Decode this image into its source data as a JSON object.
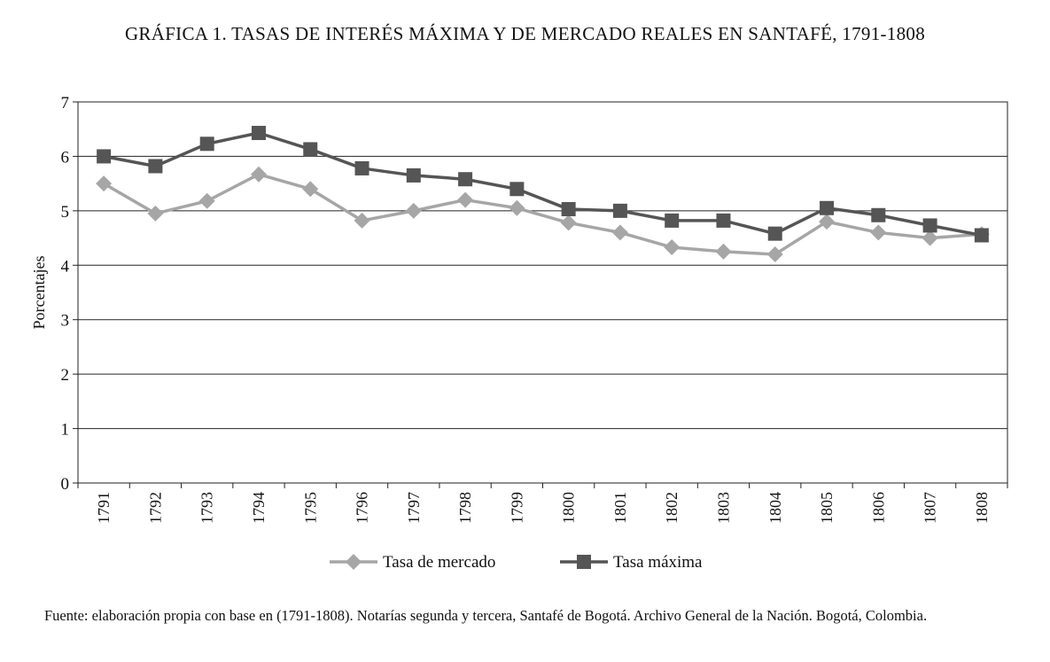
{
  "chart_data": {
    "type": "line",
    "title": "GRÁFICA 1. TASAS DE INTERÉS MÁXIMA Y DE MERCADO REALES EN SANTAFÉ, 1791-1808",
    "xlabel": "",
    "ylabel": "Porcentajes",
    "ylim": [
      0,
      7
    ],
    "yticks": [
      "0",
      "1",
      "2",
      "3",
      "4",
      "5",
      "6",
      "7"
    ],
    "grid": true,
    "legend_position": "bottom-center",
    "categories": [
      "1791",
      "1792",
      "1793",
      "1794",
      "1795",
      "1796",
      "1797",
      "1798",
      "1799",
      "1800",
      "1801",
      "1802",
      "1803",
      "1804",
      "1805",
      "1806",
      "1807",
      "1808"
    ],
    "series": [
      {
        "name": "Tasa de mercado",
        "marker": "diamond",
        "color": "#a6a6a6",
        "values": [
          5.5,
          4.95,
          5.18,
          5.67,
          5.4,
          4.82,
          5.0,
          5.2,
          5.05,
          4.78,
          4.6,
          4.33,
          4.25,
          4.2,
          4.8,
          4.6,
          4.5,
          4.57
        ]
      },
      {
        "name": "Tasa máxima",
        "marker": "square",
        "color": "#555555",
        "values": [
          6.0,
          5.82,
          6.23,
          6.43,
          6.13,
          5.78,
          5.65,
          5.58,
          5.4,
          5.03,
          5.0,
          4.82,
          4.82,
          4.58,
          5.05,
          4.92,
          4.73,
          4.55
        ]
      }
    ]
  },
  "source": {
    "text": "Fuente: elaboración propia con base en (1791-1808). Notarías segunda y tercera, Santafé de Bogotá. Archivo General de la Nación. Bogotá, Colombia."
  }
}
